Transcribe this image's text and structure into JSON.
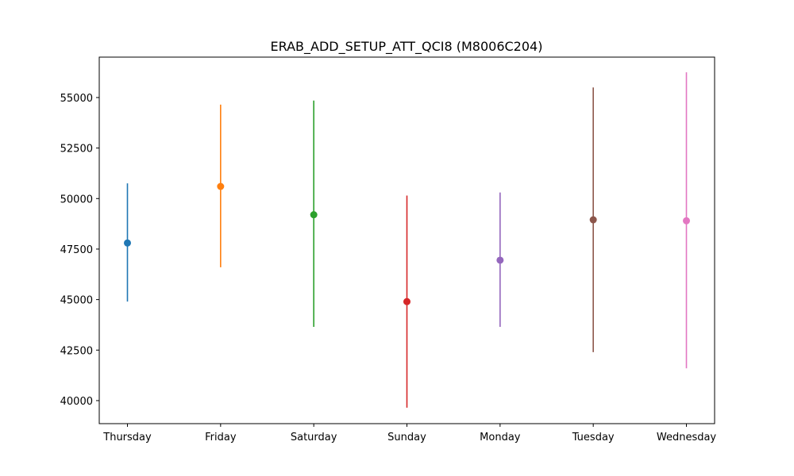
{
  "chart_data": {
    "type": "errorbar",
    "title": "ERAB_ADD_SETUP_ATT_QCI8 (M8006C204)",
    "xlabel": "",
    "ylabel": "",
    "categories": [
      "Thursday",
      "Friday",
      "Saturday",
      "Sunday",
      "Monday",
      "Tuesday",
      "Wednesday"
    ],
    "series": [
      {
        "category": "Thursday",
        "mean": 47800,
        "low": 44900,
        "high": 50750,
        "color": "#1f77b4"
      },
      {
        "category": "Friday",
        "mean": 50600,
        "low": 46600,
        "high": 54650,
        "color": "#ff7f0e"
      },
      {
        "category": "Saturday",
        "mean": 49200,
        "low": 43650,
        "high": 54850,
        "color": "#2ca02c"
      },
      {
        "category": "Sunday",
        "mean": 44900,
        "low": 39650,
        "high": 50150,
        "color": "#d62728"
      },
      {
        "category": "Monday",
        "mean": 46950,
        "low": 43650,
        "high": 50300,
        "color": "#9467bd"
      },
      {
        "category": "Tuesday",
        "mean": 48950,
        "low": 42400,
        "high": 55500,
        "color": "#8c564b"
      },
      {
        "category": "Wednesday",
        "mean": 48900,
        "low": 41600,
        "high": 56250,
        "color": "#e377c2"
      }
    ],
    "yticks": [
      40000,
      42500,
      45000,
      47500,
      50000,
      52500,
      55000
    ],
    "ylim": [
      38860,
      57000
    ],
    "grid": false,
    "legend": "none"
  }
}
